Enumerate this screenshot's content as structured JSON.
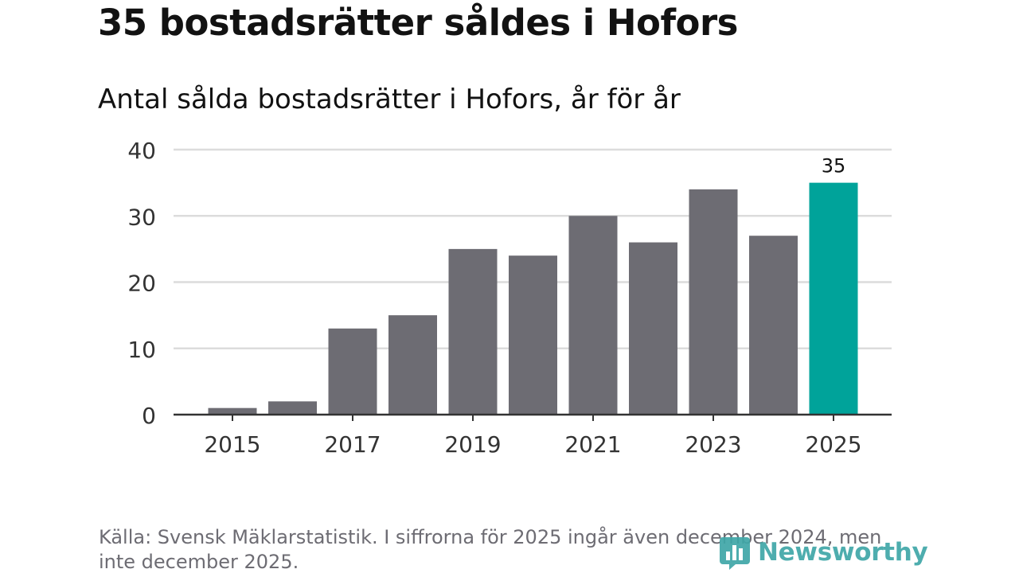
{
  "header": {
    "title": "35 bostadsrätter såldes i Hofors",
    "subtitle": "Antal sålda bostadsrätter i Hofors, år för år"
  },
  "chart_data": {
    "type": "bar",
    "title": "35 bostadsrätter såldes i Hofors",
    "subtitle": "Antal sålda bostadsrätter i Hofors, år för år",
    "categories": [
      "2015",
      "2016",
      "2017",
      "2018",
      "2019",
      "2020",
      "2021",
      "2022",
      "2023",
      "2024",
      "2025"
    ],
    "values": [
      1,
      2,
      13,
      15,
      25,
      24,
      30,
      26,
      34,
      27,
      35
    ],
    "x_tick_labels": [
      "2015",
      "2017",
      "2019",
      "2021",
      "2023",
      "2025"
    ],
    "y_ticks": [
      0,
      10,
      20,
      30,
      40
    ],
    "ylim": [
      0,
      40
    ],
    "xlabel": "",
    "ylabel": "",
    "grid": true,
    "highlight_index": 10,
    "data_labels": [
      {
        "index": 10,
        "text": "35"
      }
    ],
    "colors": {
      "bar": "#6d6c73",
      "highlight": "#00a39a",
      "grid": "#dcdcdc",
      "axis": "#333333"
    }
  },
  "footer": {
    "source": "Källa: Svensk Mäklarstatistik. I siffrorna för 2025 ingår även december 2024, men inte december 2025."
  },
  "logo": {
    "text": "Newsworthy",
    "icon": "newsworthy-bars-icon",
    "color": "#3fa7a8"
  }
}
